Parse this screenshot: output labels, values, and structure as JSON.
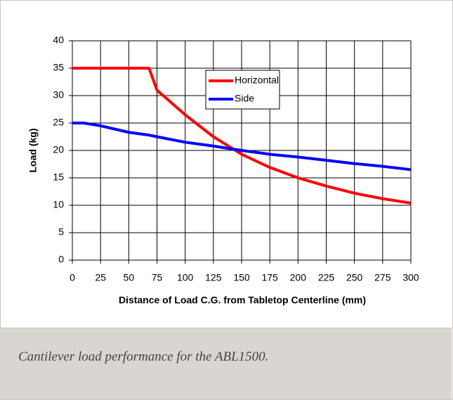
{
  "chart_data": {
    "type": "line",
    "xlabel": "Distance of Load C.G. from Tabletop Centerline (mm)",
    "ylabel": "Load (kg)",
    "x": [
      0,
      10,
      25,
      50,
      68,
      75,
      100,
      125,
      150,
      175,
      200,
      225,
      250,
      275,
      300
    ],
    "series": [
      {
        "name": "Horizontal",
        "color": "#ff0000",
        "values": [
          35,
          35,
          35,
          35,
          35,
          31,
          26.5,
          22.5,
          19.3,
          16.9,
          15,
          13.5,
          12.2,
          11.2,
          10.4
        ]
      },
      {
        "name": "Side",
        "color": "#0000ff",
        "values": [
          25,
          25,
          24.5,
          23.3,
          22.8,
          22.5,
          21.5,
          20.8,
          20,
          19.3,
          18.8,
          18.2,
          17.6,
          17.1,
          16.5
        ]
      }
    ],
    "xlim": [
      0,
      300
    ],
    "xticks": [
      0,
      25,
      50,
      75,
      100,
      125,
      150,
      175,
      200,
      225,
      250,
      275,
      300
    ],
    "ylim": [
      0,
      40
    ],
    "yticks": [
      0,
      5,
      10,
      15,
      20,
      25,
      30,
      35,
      40
    ],
    "grid": true
  },
  "caption": "Cantilever load performance for the ABL1500."
}
